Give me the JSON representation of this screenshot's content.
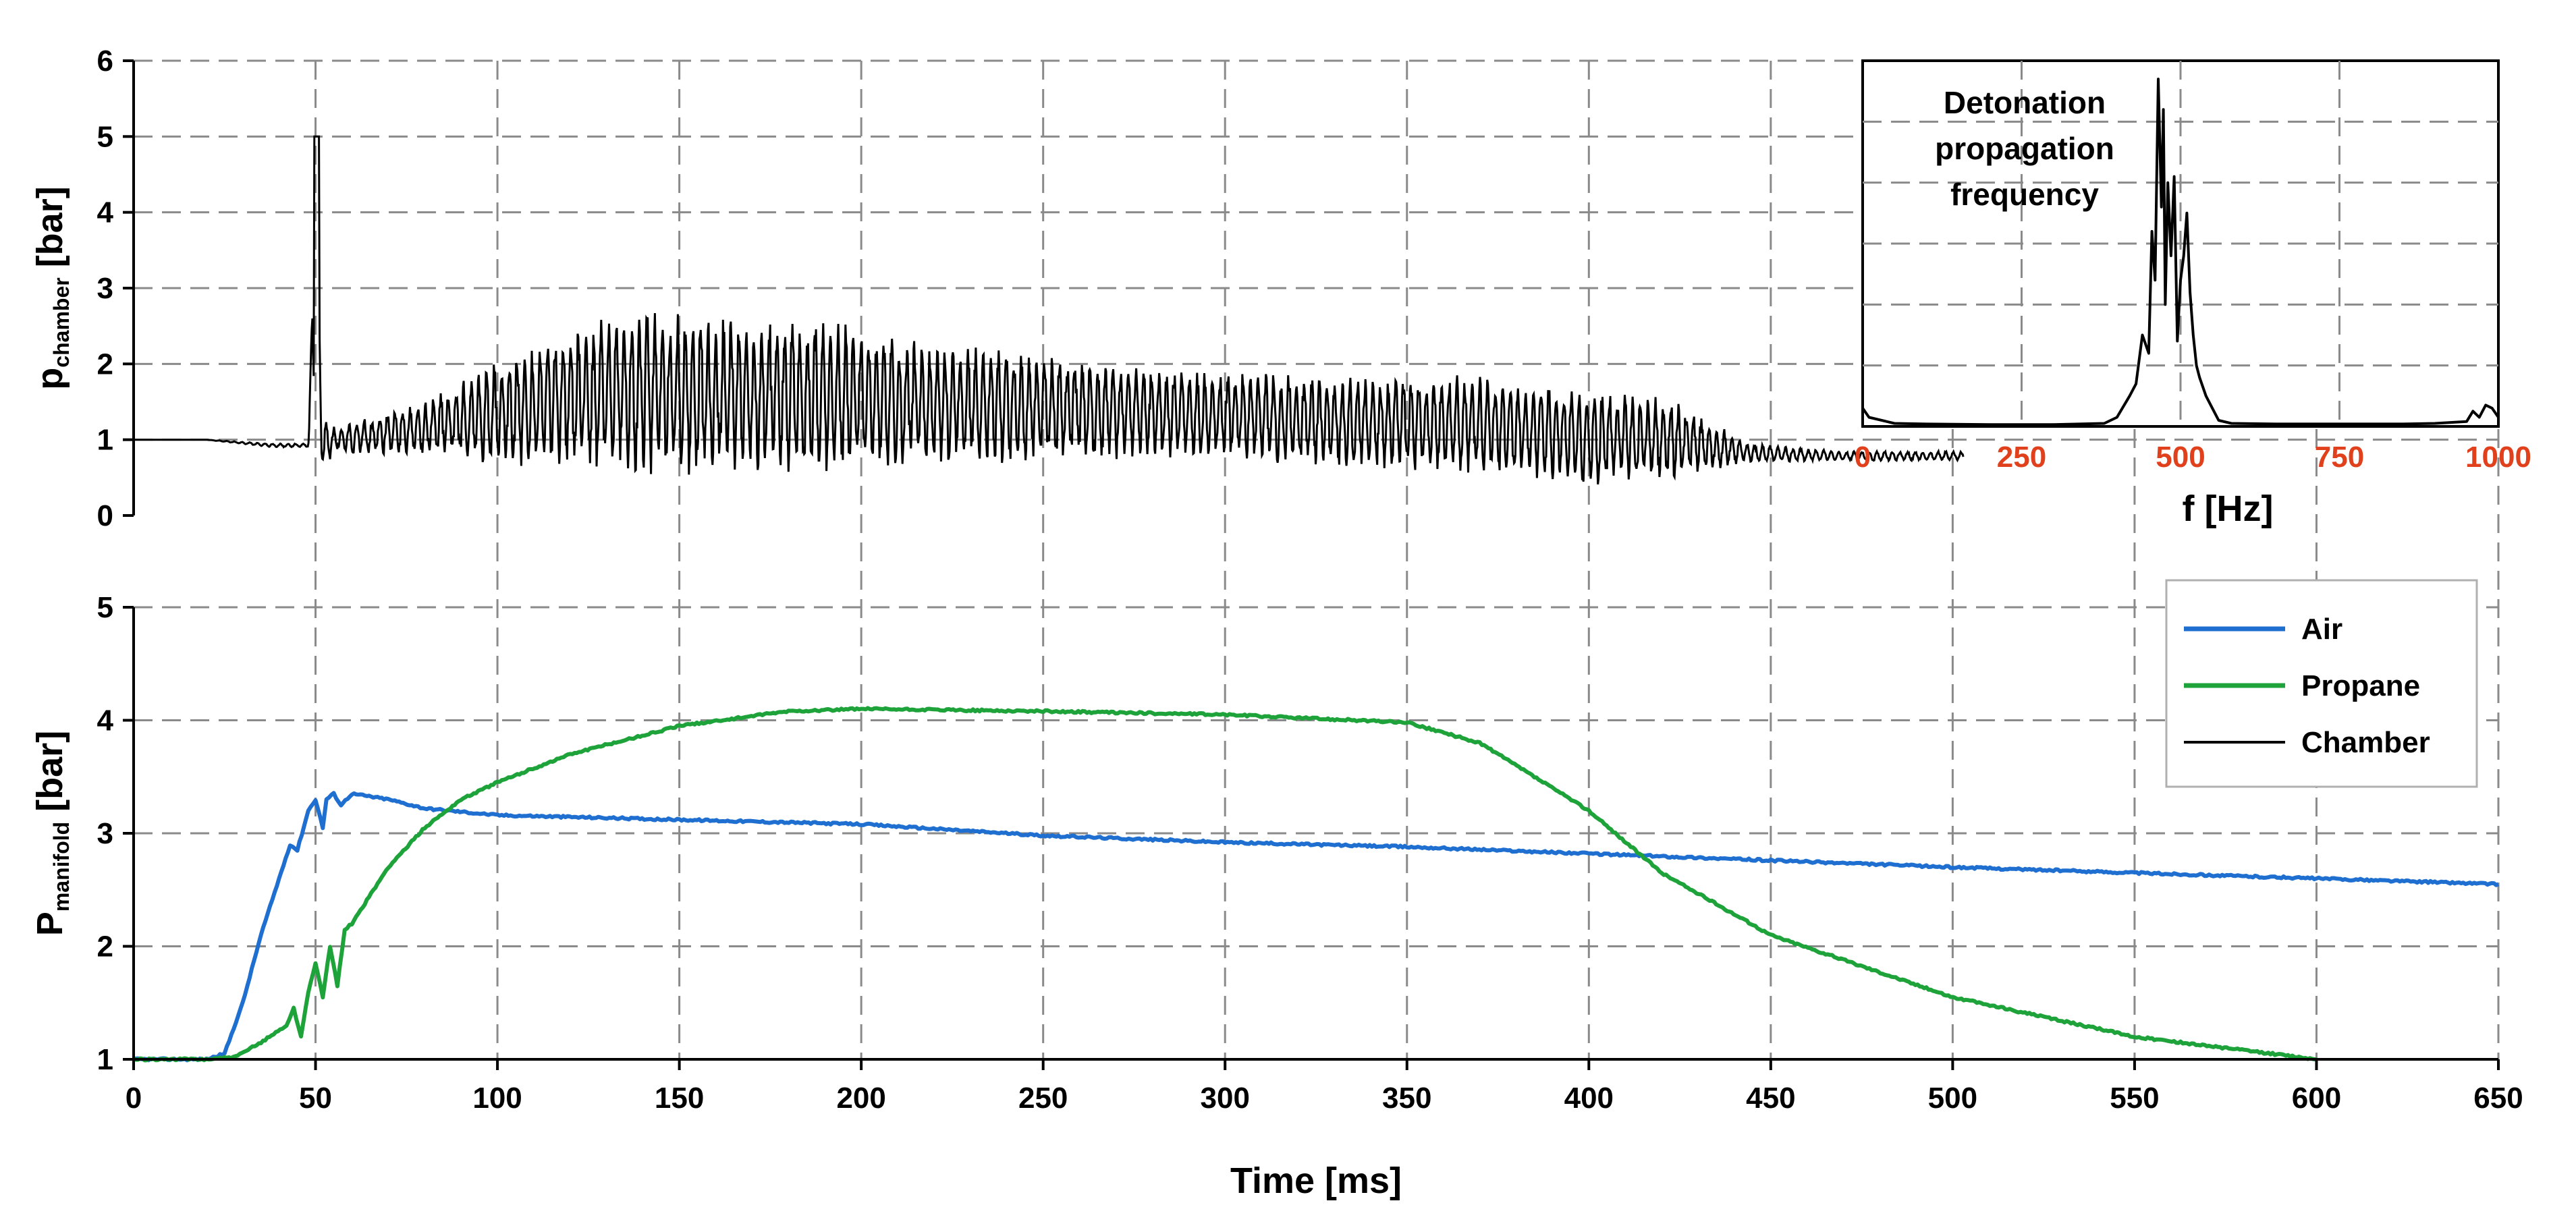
{
  "chart_data": [
    {
      "id": "chamber",
      "type": "line",
      "ylabel_main": "p",
      "ylabel_sub": "chamber",
      "ylabel_unit": " [bar]",
      "xlim": [
        0,
        650
      ],
      "ylim": [
        0,
        6
      ],
      "xticks": [
        0,
        50,
        100,
        150,
        200,
        250,
        300,
        350,
        400,
        450,
        500,
        550,
        600,
        650
      ],
      "yticks": [
        "0",
        "1",
        "2",
        "3",
        "4",
        "5",
        "6"
      ],
      "grid": true,
      "series": [
        {
          "name": "Chamber",
          "color": "#000000",
          "envelope": {
            "t": [
              0,
              20,
              38,
              48,
              50,
              52,
              56,
              60,
              80,
              100,
              130,
              160,
              190,
              220,
              250,
              280,
              310,
              340,
              370,
              400,
              420,
              435,
              445,
              470,
              503
            ],
            "upper": [
              1.0,
              1.0,
              0.95,
              0.95,
              5.0,
              1.3,
              1.15,
              1.25,
              1.5,
              2.1,
              2.7,
              2.7,
              2.6,
              2.3,
              2.2,
              1.95,
              1.9,
              1.85,
              1.9,
              1.65,
              1.6,
              1.2,
              0.95,
              0.85,
              0.85
            ],
            "lower": [
              1.0,
              1.0,
              0.9,
              0.9,
              0.9,
              0.6,
              0.85,
              0.8,
              0.8,
              0.65,
              0.55,
              0.5,
              0.55,
              0.65,
              0.7,
              0.75,
              0.7,
              0.6,
              0.5,
              0.4,
              0.45,
              0.6,
              0.7,
              0.72,
              0.72
            ]
          }
        }
      ]
    },
    {
      "id": "manifold",
      "type": "line",
      "xlabel": "Time [ms]",
      "ylabel_main": "P",
      "ylabel_sub": "manifold",
      "ylabel_unit": " [bar]",
      "xlim": [
        0,
        650
      ],
      "ylim": [
        1,
        5
      ],
      "xticks": [
        0,
        50,
        100,
        150,
        200,
        250,
        300,
        350,
        400,
        450,
        500,
        550,
        600,
        650
      ],
      "xtick_labels": [
        "0",
        "50",
        "100",
        "150",
        "200",
        "250",
        "300",
        "350",
        "400",
        "450",
        "500",
        "550",
        "600",
        "650"
      ],
      "yticks": [
        "1",
        "2",
        "3",
        "4",
        "5"
      ],
      "grid": true,
      "legend_position": "top-right",
      "series": [
        {
          "name": "Air",
          "color": "#1f6fd1",
          "x": [
            0,
            10,
            20,
            25,
            30,
            35,
            40,
            43,
            45,
            48,
            50,
            52,
            53,
            55,
            57,
            60,
            70,
            80,
            100,
            150,
            200,
            250,
            300,
            350,
            400,
            450,
            500,
            550,
            600,
            650
          ],
          "y": [
            1.0,
            1.0,
            1.0,
            1.05,
            1.5,
            2.1,
            2.6,
            2.9,
            2.85,
            3.2,
            3.3,
            3.05,
            3.3,
            3.35,
            3.25,
            3.35,
            3.3,
            3.22,
            3.16,
            3.12,
            3.08,
            2.98,
            2.92,
            2.88,
            2.82,
            2.76,
            2.7,
            2.65,
            2.6,
            2.55
          ]
        },
        {
          "name": "Propane",
          "color": "#1ea33a",
          "x": [
            0,
            20,
            28,
            35,
            42,
            44,
            46,
            48,
            50,
            52,
            54,
            56,
            58,
            60,
            70,
            80,
            90,
            100,
            120,
            150,
            180,
            200,
            250,
            300,
            350,
            370,
            400,
            420,
            450,
            500,
            550,
            600
          ],
          "y": [
            1.0,
            1.0,
            1.02,
            1.15,
            1.3,
            1.45,
            1.2,
            1.6,
            1.85,
            1.55,
            2.0,
            1.65,
            2.15,
            2.2,
            2.7,
            3.05,
            3.3,
            3.45,
            3.7,
            3.95,
            4.08,
            4.1,
            4.08,
            4.05,
            3.98,
            3.8,
            3.2,
            2.65,
            2.1,
            1.55,
            1.2,
            1.0
          ]
        },
        {
          "name": "Chamber",
          "color": "#000000",
          "x": [],
          "y": []
        }
      ]
    },
    {
      "id": "fft-inset",
      "type": "line",
      "title_lines": [
        "Detonation",
        "propagation",
        "frequency"
      ],
      "xlabel": "f [Hz]",
      "xlim": [
        0,
        1000
      ],
      "xticks": [
        0,
        250,
        500,
        750,
        1000
      ],
      "xtick_labels": [
        "0",
        "250",
        "500",
        "750",
        "1000"
      ],
      "tick_color": "#e0401c",
      "ylim": [
        0,
        6
      ],
      "grid": true,
      "series": [
        {
          "name": "spectrum",
          "color": "#000000",
          "x": [
            0,
            10,
            50,
            100,
            200,
            300,
            380,
            400,
            420,
            430,
            440,
            450,
            455,
            460,
            465,
            470,
            473,
            476,
            480,
            485,
            490,
            495,
            500,
            505,
            510,
            515,
            520,
            525,
            530,
            540,
            550,
            560,
            580,
            650,
            750,
            850,
            900,
            950,
            960,
            970,
            980,
            990,
            1000
          ],
          "y": [
            0.3,
            0.15,
            0.05,
            0.04,
            0.03,
            0.03,
            0.05,
            0.15,
            0.5,
            0.7,
            1.5,
            1.2,
            3.2,
            2.4,
            5.7,
            3.6,
            5.2,
            2.0,
            4.0,
            2.8,
            4.1,
            1.4,
            2.4,
            2.8,
            3.5,
            2.2,
            1.5,
            1.0,
            0.8,
            0.5,
            0.3,
            0.1,
            0.05,
            0.04,
            0.04,
            0.04,
            0.05,
            0.08,
            0.25,
            0.15,
            0.35,
            0.3,
            0.15
          ]
        }
      ]
    }
  ]
}
